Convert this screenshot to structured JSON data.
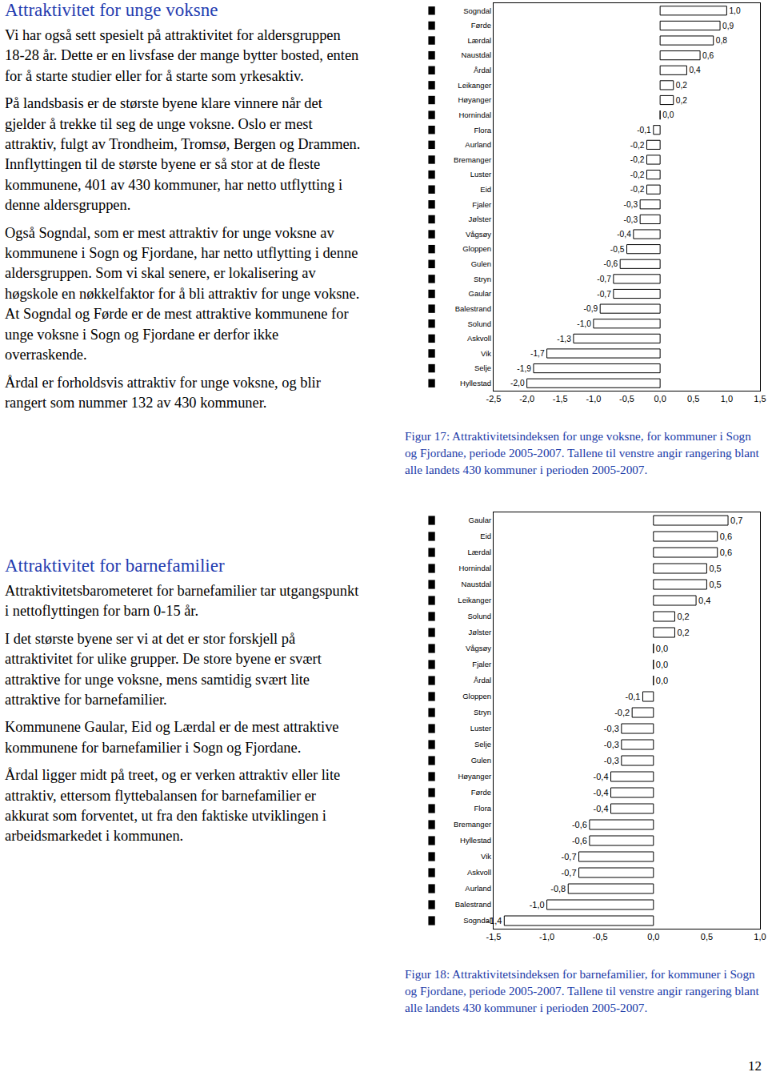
{
  "document": {
    "sections": [
      {
        "heading": "Attraktivitet for unge voksne",
        "paragraphs": [
          "Vi har også sett spesielt på attraktivitet for aldersgruppen 18-28 år. Dette er en livsfase der mange bytter bosted, enten for å starte studier eller for å starte som yrkesaktiv.",
          "På landsbasis er de største byene klare vinnere når det gjelder å trekke til seg de unge voksne. Oslo er mest attraktiv, fulgt av Trondheim, Tromsø, Bergen og Drammen. Innflyttingen til de største byene er så stor at de fleste kommunene, 401 av 430 kommuner, har netto utflytting i denne aldersgruppen.",
          "Også Sogndal, som er mest attraktiv for unge voksne av kommunene i Sogn og Fjordane, har netto utflytting i denne aldersgruppen. Som vi skal senere, er lokalisering av høgskole en nøkkelfaktor for å bli attraktiv for unge voksne. At Sogndal og Førde er de mest attraktive kommunene for unge voksne i Sogn og Fjordane er derfor ikke overraskende.",
          "Årdal er forholdsvis attraktiv for unge voksne, og blir rangert som nummer 132 av 430 kommuner."
        ]
      },
      {
        "heading": "Attraktivitet for barnefamilier",
        "paragraphs": [
          "Attraktivitetsbarometeret for barnefamilier tar utgangspunkt i nettoflyttingen for barn 0-15 år.",
          "I det største byene ser vi at det er stor forskjell på attraktivitet for ulike grupper. De store byene er svært attraktive for unge voksne, mens samtidig svært lite attraktive for barnefamilier.",
          "Kommunene Gaular, Eid og Lærdal er de mest attraktive kommunene for barnefamilier i Sogn og Fjordane.",
          "Årdal ligger midt på treet, og er verken attraktiv eller lite attraktiv, ettersom flyttebalansen for barnefamilier er akkurat som forventet, ut fra den faktiske utviklingen i arbeidsmarkedet i kommunen."
        ]
      }
    ],
    "page_number": "12"
  },
  "chart_data": [
    {
      "type": "bar",
      "orientation": "horizontal",
      "title": "Figur 17: Attraktivitetsindeksen for unge voksne, for kommuner i Sogn og Fjordane, periode 2005-2007. Tallene til venstre angir rangering blant alle landets 430 kommuner i perioden 2005-2007.",
      "categories": [
        "Sogndal",
        "Førde",
        "Lærdal",
        "Naustdal",
        "Årdal",
        "Leikanger",
        "Høyanger",
        "Hornindal",
        "Flora",
        "Aurland",
        "Bremanger",
        "Luster",
        "Eid",
        "Fjaler",
        "Jølster",
        "Vågsøy",
        "Gloppen",
        "Gulen",
        "Stryn",
        "Gaular",
        "Balestrand",
        "Solund",
        "Askvoll",
        "Vik",
        "Selje",
        "Hyllestad"
      ],
      "values": [
        1.0,
        0.9,
        0.8,
        0.6,
        0.4,
        0.2,
        0.2,
        0.0,
        -0.1,
        -0.2,
        -0.2,
        -0.2,
        -0.2,
        -0.3,
        -0.3,
        -0.4,
        -0.5,
        -0.6,
        -0.7,
        -0.7,
        -0.9,
        -1.0,
        -1.3,
        -1.7,
        -1.9,
        -2.0
      ],
      "value_labels": [
        "1,0",
        "0,9",
        "0,8",
        "0,6",
        "0,4",
        "0,2",
        "0,2",
        "0,0",
        "-0,1",
        "-0,2",
        "-0,2",
        "-0,2",
        "-0,2",
        "-0,3",
        "-0,3",
        "-0,4",
        "-0,5",
        "-0,6",
        "-0,7",
        "-0,7",
        "-0,9",
        "-1,0",
        "-1,3",
        "-1,7",
        "-1,9",
        "-2,0"
      ],
      "color": "#ffffff",
      "data_labels": true,
      "grid": false,
      "xlim": [
        -2.5,
        1.5
      ],
      "xticks": [
        {
          "value": -2.5,
          "label": "-2,5"
        },
        {
          "value": -2.0,
          "label": "-2,0"
        },
        {
          "value": -1.5,
          "label": "-1,5"
        },
        {
          "value": -1.0,
          "label": "-1,0"
        },
        {
          "value": -0.5,
          "label": "-0,5"
        },
        {
          "value": 0.0,
          "label": "0,0"
        },
        {
          "value": 0.5,
          "label": "0,5"
        },
        {
          "value": 1.0,
          "label": "1,0"
        },
        {
          "value": 1.5,
          "label": "1,5"
        }
      ]
    },
    {
      "type": "bar",
      "orientation": "horizontal",
      "title": "Figur 18: Attraktivitetsindeksen for barnefamilier, for kommuner i Sogn og Fjordane, periode 2005-2007. Tallene til venstre angir rangering blant alle landets 430 kommuner i perioden 2005-2007.",
      "categories": [
        "Gaular",
        "Eid",
        "Lærdal",
        "Hornindal",
        "Naustdal",
        "Leikanger",
        "Solund",
        "Jølster",
        "Vågsøy",
        "Fjaler",
        "Årdal",
        "Gloppen",
        "Stryn",
        "Luster",
        "Selje",
        "Gulen",
        "Høyanger",
        "Førde",
        "Flora",
        "Bremanger",
        "Hyllestad",
        "Vik",
        "Askvoll",
        "Aurland",
        "Balestrand",
        "Sogndal"
      ],
      "values": [
        0.7,
        0.6,
        0.6,
        0.5,
        0.5,
        0.4,
        0.2,
        0.2,
        0.0,
        0.0,
        0.0,
        -0.1,
        -0.2,
        -0.3,
        -0.3,
        -0.3,
        -0.4,
        -0.4,
        -0.4,
        -0.6,
        -0.6,
        -0.7,
        -0.7,
        -0.8,
        -1.0,
        -1.4
      ],
      "value_labels": [
        "0,7",
        "0,6",
        "0,6",
        "0,5",
        "0,5",
        "0,4",
        "0,2",
        "0,2",
        "0,0",
        "0,0",
        "0,0",
        "-0,1",
        "-0,2",
        "-0,3",
        "-0,3",
        "-0,3",
        "-0,4",
        "-0,4",
        "-0,4",
        "-0,6",
        "-0,6",
        "-0,7",
        "-0,7",
        "-0,8",
        "-1,0",
        "-1,4"
      ],
      "color": "#ffffff",
      "data_labels": true,
      "grid": false,
      "xlim": [
        -1.5,
        1.0
      ],
      "xticks": [
        {
          "value": -1.5,
          "label": "-1,5"
        },
        {
          "value": -1.0,
          "label": "-1,0"
        },
        {
          "value": -0.5,
          "label": "-0,5"
        },
        {
          "value": 0.0,
          "label": "0,0"
        },
        {
          "value": 0.5,
          "label": "0,5"
        },
        {
          "value": 1.0,
          "label": "1,0"
        }
      ]
    }
  ]
}
